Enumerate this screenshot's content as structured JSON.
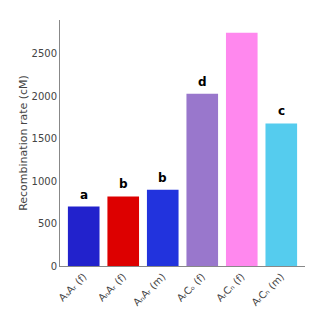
{
  "chart_data": {
    "type": "bar",
    "categories": [
      "AₛAᵣ (f)",
      "AₙAᵣ (f)",
      "AₙAᵣ (m)",
      "AᵣCₒ (f)",
      "AᵣCₙ (f)",
      "AᵣCₙ (m)"
    ],
    "values": [
      700,
      820,
      900,
      2030,
      2750,
      1680
    ],
    "colors": [
      "#2222cc",
      "#dd0000",
      "#2233dd",
      "#9977cc",
      "#ff88ee",
      "#55ccee"
    ],
    "annotations": [
      {
        "category": "AₛAᵣ (f)",
        "text": "a"
      },
      {
        "category": "AₙAᵣ (f)",
        "text": "b"
      },
      {
        "category": "AₙAᵣ (m)",
        "text": "b"
      },
      {
        "category": "AᵣCₒ (f)",
        "text": "d"
      },
      {
        "category": "AᵣCₙ (m)",
        "text": "c"
      }
    ],
    "ylabel": "Recombination rate (cM)",
    "ylim": [
      0,
      2900
    ],
    "yticks": [
      0,
      500,
      1000,
      1500,
      2000,
      2500
    ],
    "grid": false
  }
}
